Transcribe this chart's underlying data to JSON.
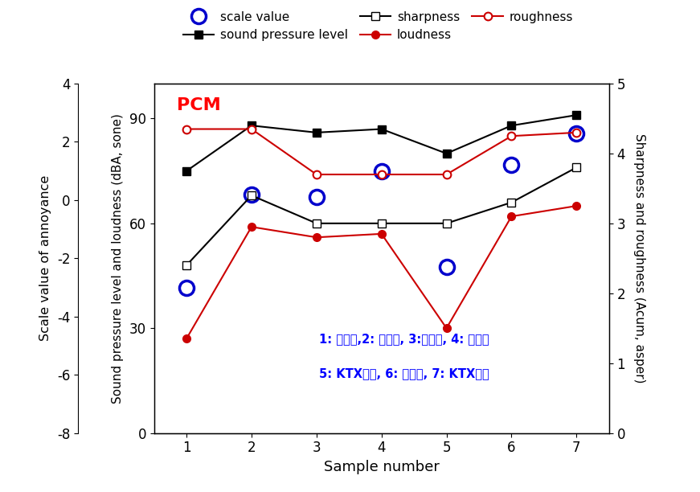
{
  "samples": [
    1,
    2,
    3,
    4,
    5,
    6,
    7
  ],
  "scale_value": [
    -3.0,
    0.2,
    0.1,
    1.0,
    -2.3,
    1.2,
    2.3
  ],
  "sound_pressure_level": [
    75,
    88,
    86,
    87,
    80,
    88,
    91
  ],
  "loudness": [
    27,
    59,
    56,
    57,
    30,
    62,
    65
  ],
  "sharpness_right": [
    2.4,
    3.4,
    3.0,
    3.0,
    3.0,
    3.3,
    3.8
  ],
  "roughness_right": [
    4.35,
    4.35,
    3.7,
    3.7,
    3.7,
    4.25,
    4.3
  ],
  "annoyance_ylim": [
    -8,
    4
  ],
  "annoyance_yticks": [
    -8,
    -6,
    -4,
    -2,
    0,
    2,
    4
  ],
  "physical_ylim": [
    0,
    100
  ],
  "physical_yticks": [
    0,
    30,
    60,
    90
  ],
  "right_ylim": [
    0,
    5
  ],
  "right_yticks": [
    0,
    1,
    2,
    3,
    4,
    5
  ],
  "ylabel_annoyance": "Scale value of annoyance",
  "ylabel_physical": "Sound pressure level and loudness (dBA, sone)",
  "ylabel_right": "Sharpness and roughness (Acum, asper)",
  "xlabel": "Sample number",
  "pcm_label": "PCM",
  "annotation_line1": "1: 누리로,2: 지하철, 3:화물차, 4: 무궁화",
  "annotation_line2": "5: KTX저속, 6: 새마을, 7: KTX고속",
  "color_scale": "#0000cc",
  "color_spl": "#000000",
  "color_sharpness": "#000000",
  "color_loudness": "#cc0000",
  "color_roughness": "#cc0000",
  "annoyance_to_physical_min": -8,
  "annoyance_to_physical_max": 4,
  "physical_min": 0,
  "physical_max": 100
}
